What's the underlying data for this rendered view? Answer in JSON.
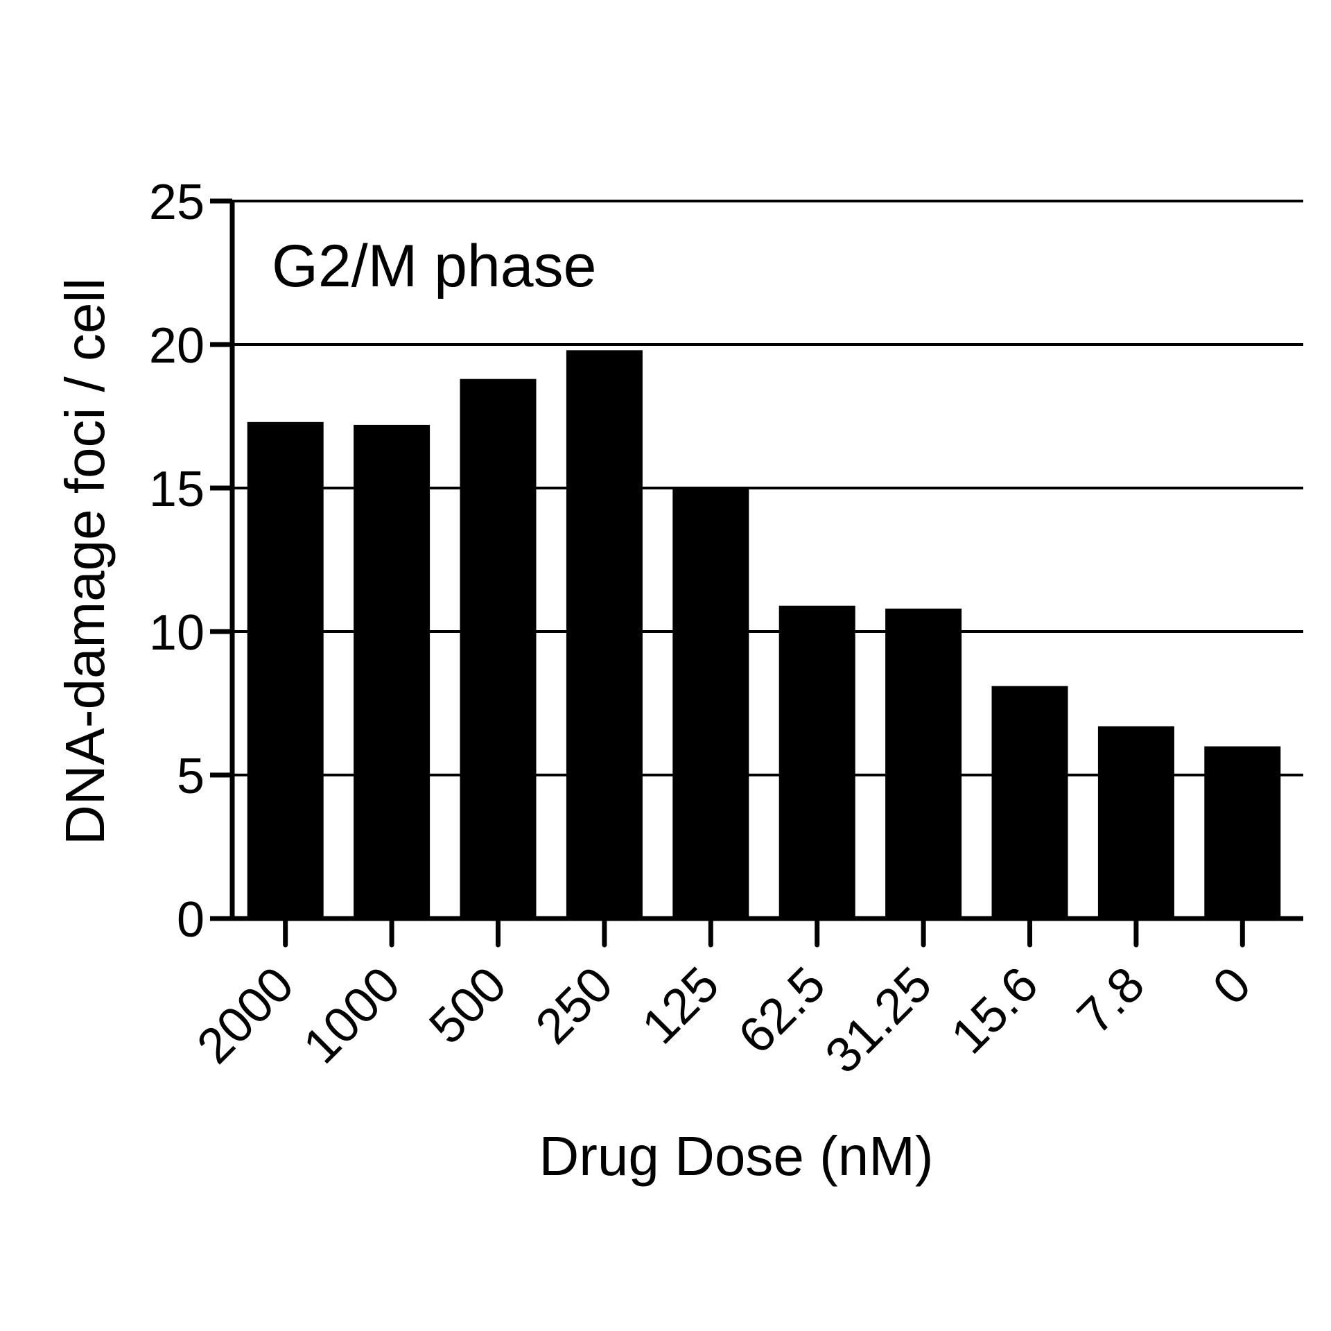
{
  "chart_data": {
    "type": "bar",
    "annotation": "G2/M phase",
    "xlabel": "Drug Dose (nM)",
    "ylabel": "DNA-damage foci / cell",
    "categories": [
      "2000",
      "1000",
      "500",
      "250",
      "125",
      "62.5",
      "31.25",
      "15.6",
      "7.8",
      "0"
    ],
    "values": [
      17.3,
      17.2,
      18.8,
      19.8,
      15.0,
      10.9,
      10.8,
      8.1,
      6.7,
      6.0
    ],
    "ylim": [
      0,
      25
    ],
    "yticks": [
      0,
      5,
      10,
      15,
      20,
      25
    ],
    "ytick_labels": [
      "0",
      "5",
      "10",
      "15",
      "20",
      "25"
    ],
    "grid": "horizontal",
    "legend": "none",
    "colors": {
      "bar": "#000000",
      "axis": "#000000",
      "grid": "#000000",
      "background": "#ffffff"
    }
  }
}
